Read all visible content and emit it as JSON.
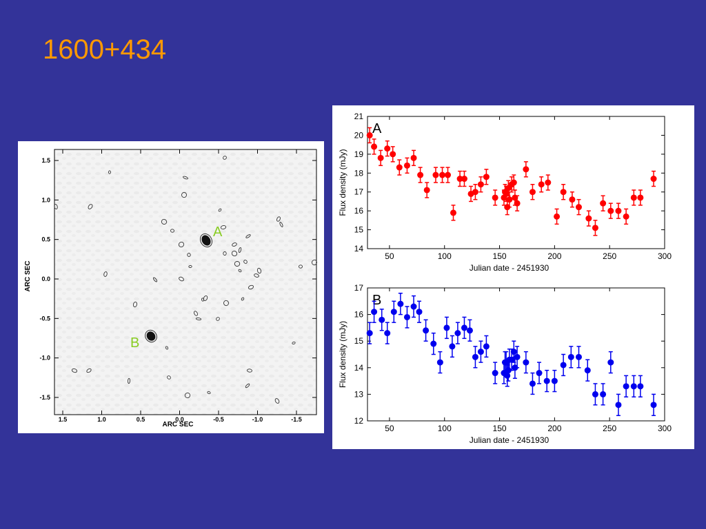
{
  "slide": {
    "title": "1600+434"
  },
  "colors": {
    "background": "#333399",
    "title": "#FF9900",
    "series_a": "#FF0000",
    "series_b": "#0000EE",
    "image_labels": "#88CC22"
  },
  "radio_map": {
    "x_axis_label": "ARC SEC",
    "y_axis_label": "ARC SEC",
    "x_ticks": [
      "1.5",
      "1.0",
      "0.5",
      "0.0",
      "-0.5",
      "-1.0",
      "-1.5"
    ],
    "y_ticks": [
      "1.5",
      "1.0",
      "0.5",
      "0.0",
      "-0.5",
      "-1.0",
      "-1.5"
    ],
    "image_a_label": "A",
    "image_b_label": "B"
  },
  "chart_data": [
    {
      "type": "scatter",
      "panel_label": "A",
      "xlabel": "Julian date - 2451930",
      "ylabel": "Flux density (mJy)",
      "xlim": [
        30,
        300
      ],
      "ylim": [
        14,
        21
      ],
      "xticks": [
        50,
        100,
        150,
        200,
        250,
        300
      ],
      "yticks": [
        14,
        15,
        16,
        17,
        18,
        19,
        20,
        21
      ],
      "error_bar": 0.4,
      "series": [
        {
          "color": "#FF0000",
          "points": [
            [
              32,
              20.0
            ],
            [
              36,
              19.4
            ],
            [
              42,
              18.8
            ],
            [
              48,
              19.3
            ],
            [
              53,
              19.0
            ],
            [
              59,
              18.3
            ],
            [
              66,
              18.4
            ],
            [
              72,
              18.8
            ],
            [
              78,
              17.9
            ],
            [
              84,
              17.1
            ],
            [
              92,
              17.9
            ],
            [
              98,
              17.9
            ],
            [
              103,
              17.9
            ],
            [
              108,
              15.9
            ],
            [
              114,
              17.7
            ],
            [
              118,
              17.7
            ],
            [
              124,
              16.9
            ],
            [
              128,
              17.0
            ],
            [
              133,
              17.4
            ],
            [
              138,
              17.8
            ],
            [
              146,
              16.7
            ],
            [
              154,
              16.7
            ],
            [
              155,
              17.0
            ],
            [
              156,
              16.9
            ],
            [
              157,
              16.2
            ],
            [
              158,
              17.2
            ],
            [
              159,
              16.6
            ],
            [
              161,
              17.4
            ],
            [
              163,
              17.5
            ],
            [
              164,
              16.7
            ],
            [
              166,
              16.4
            ],
            [
              174,
              18.2
            ],
            [
              180,
              17.0
            ],
            [
              188,
              17.4
            ],
            [
              194,
              17.5
            ],
            [
              202,
              15.7
            ],
            [
              208,
              17.0
            ],
            [
              216,
              16.6
            ],
            [
              222,
              16.2
            ],
            [
              231,
              15.6
            ],
            [
              237,
              15.1
            ],
            [
              244,
              16.4
            ],
            [
              251,
              16.0
            ],
            [
              258,
              16.0
            ],
            [
              265,
              15.7
            ],
            [
              272,
              16.7
            ],
            [
              278,
              16.7
            ],
            [
              290,
              17.7
            ]
          ]
        }
      ]
    },
    {
      "type": "scatter",
      "panel_label": "B",
      "xlabel": "Julian date - 2451930",
      "ylabel": "Flux density (mJy)",
      "xlim": [
        30,
        300
      ],
      "ylim": [
        12,
        17
      ],
      "xticks": [
        50,
        100,
        150,
        200,
        250,
        300
      ],
      "yticks": [
        12,
        13,
        14,
        15,
        16,
        17
      ],
      "error_bar": 0.4,
      "series": [
        {
          "color": "#0000EE",
          "points": [
            [
              32,
              15.3
            ],
            [
              36,
              16.1
            ],
            [
              43,
              15.8
            ],
            [
              48,
              15.3
            ],
            [
              54,
              16.1
            ],
            [
              60,
              16.4
            ],
            [
              66,
              15.9
            ],
            [
              72,
              16.3
            ],
            [
              77,
              16.1
            ],
            [
              83,
              15.4
            ],
            [
              90,
              14.9
            ],
            [
              96,
              14.2
            ],
            [
              102,
              15.5
            ],
            [
              107,
              14.8
            ],
            [
              112,
              15.3
            ],
            [
              118,
              15.5
            ],
            [
              123,
              15.4
            ],
            [
              128,
              14.4
            ],
            [
              133,
              14.6
            ],
            [
              138,
              14.8
            ],
            [
              146,
              13.8
            ],
            [
              154,
              13.8
            ],
            [
              155,
              14.2
            ],
            [
              156,
              14.2
            ],
            [
              157,
              13.7
            ],
            [
              158,
              13.9
            ],
            [
              159,
              14.3
            ],
            [
              161,
              14.3
            ],
            [
              163,
              14.6
            ],
            [
              164,
              14.0
            ],
            [
              166,
              14.4
            ],
            [
              174,
              14.2
            ],
            [
              180,
              13.4
            ],
            [
              186,
              13.8
            ],
            [
              193,
              13.5
            ],
            [
              200,
              13.5
            ],
            [
              208,
              14.1
            ],
            [
              215,
              14.4
            ],
            [
              222,
              14.4
            ],
            [
              230,
              13.9
            ],
            [
              237,
              13.0
            ],
            [
              244,
              13.0
            ],
            [
              251,
              14.2
            ],
            [
              258,
              12.6
            ],
            [
              265,
              13.3
            ],
            [
              272,
              13.3
            ],
            [
              278,
              13.3
            ],
            [
              290,
              12.6
            ]
          ]
        }
      ]
    }
  ]
}
